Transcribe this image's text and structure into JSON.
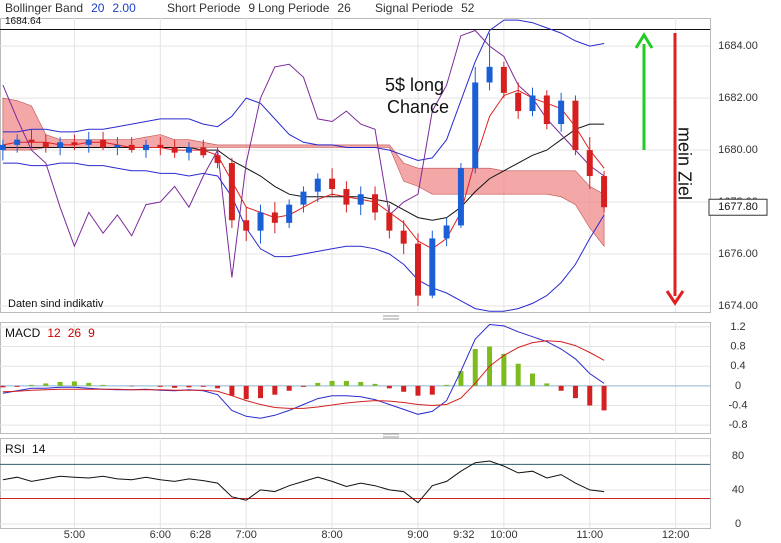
{
  "chart_data": [
    {
      "type": "candlestick",
      "indicators": [
        {
          "name": "Bollinger Band",
          "params": [
            "20",
            "2.00"
          ],
          "color": "#1a3fcc"
        },
        {
          "name": "Short Periode",
          "params": [
            "9"
          ],
          "color": "#333333"
        },
        {
          "name": "Long Periode",
          "params": [
            "26"
          ],
          "color": "#333333"
        },
        {
          "name": "Signal Periode",
          "params": [
            "52"
          ],
          "color": "#333333"
        }
      ],
      "x": [
        "4:10",
        "4:20",
        "4:30",
        "4:40",
        "4:50",
        "5:00",
        "5:10",
        "5:20",
        "5:30",
        "5:40",
        "5:50",
        "6:00",
        "6:10",
        "6:20",
        "6:30",
        "6:40",
        "6:50",
        "7:00",
        "7:10",
        "7:20",
        "7:30",
        "7:40",
        "7:50",
        "8:00",
        "8:10",
        "8:20",
        "8:30",
        "8:40",
        "8:50",
        "9:00",
        "9:10",
        "9:20",
        "9:30",
        "9:40",
        "9:50",
        "10:00",
        "10:10",
        "10:20",
        "10:30",
        "10:40",
        "10:50",
        "11:00",
        "11:10"
      ],
      "open": [
        1680.0,
        1680.2,
        1680.4,
        1680.3,
        1680.1,
        1680.3,
        1680.2,
        1680.4,
        1680.1,
        1680.2,
        1680.0,
        1680.2,
        1680.1,
        1679.9,
        1680.1,
        1679.8,
        1679.5,
        1677.3,
        1676.9,
        1677.6,
        1677.2,
        1677.9,
        1678.4,
        1678.9,
        1678.5,
        1677.9,
        1678.3,
        1677.6,
        1676.9,
        1676.4,
        1674.4,
        1676.6,
        1677.1,
        1679.3,
        1682.6,
        1683.2,
        1682.2,
        1681.5,
        1682.1,
        1681.0,
        1681.9,
        1680.0,
        1679.0
      ],
      "high": [
        1680.4,
        1680.6,
        1680.8,
        1680.6,
        1680.5,
        1680.6,
        1680.7,
        1680.7,
        1680.5,
        1680.5,
        1680.4,
        1680.5,
        1680.4,
        1680.3,
        1680.4,
        1680.1,
        1679.7,
        1677.8,
        1677.9,
        1678.0,
        1678.1,
        1678.6,
        1679.1,
        1679.3,
        1678.8,
        1678.6,
        1678.6,
        1677.9,
        1677.3,
        1676.8,
        1676.9,
        1677.4,
        1679.5,
        1683.2,
        1684.5,
        1683.4,
        1682.6,
        1682.4,
        1682.3,
        1682.2,
        1682.1,
        1680.5,
        1679.2
      ],
      "low": [
        1679.6,
        1679.9,
        1680.1,
        1679.9,
        1679.8,
        1680.0,
        1679.9,
        1680.0,
        1679.8,
        1679.9,
        1679.7,
        1679.8,
        1679.7,
        1679.6,
        1679.7,
        1679.3,
        1677.0,
        1676.5,
        1676.4,
        1676.8,
        1677.0,
        1677.6,
        1678.0,
        1678.2,
        1677.6,
        1677.5,
        1677.3,
        1676.6,
        1676.0,
        1674.0,
        1674.3,
        1676.3,
        1677.0,
        1679.1,
        1682.3,
        1682.0,
        1681.2,
        1681.3,
        1680.8,
        1680.7,
        1679.8,
        1678.5,
        1677.6
      ],
      "close": [
        1680.2,
        1680.4,
        1680.3,
        1680.1,
        1680.3,
        1680.2,
        1680.4,
        1680.1,
        1680.2,
        1680.0,
        1680.2,
        1680.1,
        1679.9,
        1680.1,
        1679.8,
        1679.5,
        1677.3,
        1676.9,
        1677.6,
        1677.2,
        1677.9,
        1678.4,
        1678.9,
        1678.5,
        1677.9,
        1678.3,
        1677.6,
        1676.9,
        1676.4,
        1674.4,
        1676.6,
        1677.1,
        1679.3,
        1682.6,
        1683.2,
        1682.2,
        1681.5,
        1682.1,
        1681.0,
        1681.9,
        1680.0,
        1679.0,
        1677.8
      ],
      "up_color": "#1a5fd6",
      "down_color": "#d62020",
      "cloud": {
        "color": "#f08a8a",
        "span_a": [
          1682.0,
          1681.9,
          1681.7,
          1680.6,
          1680.4,
          1680.4,
          1680.4,
          1680.4,
          1680.4,
          1680.4,
          1680.5,
          1680.6,
          1680.4,
          1680.4,
          1680.3,
          1680.2,
          1680.2,
          1680.2,
          1680.2,
          1680.2,
          1680.2,
          1680.2,
          1680.2,
          1680.2,
          1680.2,
          1680.2,
          1680.2,
          1680.2,
          1679.5,
          1679.3,
          1679.3,
          1679.3,
          1679.3,
          1679.3,
          1679.3,
          1679.2,
          1679.2,
          1679.2,
          1679.2,
          1679.2,
          1679.2,
          1678.6,
          1678.3
        ],
        "span_b": [
          1680.0,
          1680.0,
          1680.0,
          1680.1,
          1680.1,
          1680.1,
          1680.1,
          1680.1,
          1680.1,
          1680.1,
          1680.1,
          1680.1,
          1680.1,
          1680.1,
          1680.1,
          1680.1,
          1680.1,
          1680.1,
          1680.1,
          1680.1,
          1680.1,
          1680.1,
          1680.1,
          1680.1,
          1680.1,
          1680.1,
          1680.1,
          1680.1,
          1678.8,
          1678.6,
          1678.3,
          1678.3,
          1678.3,
          1678.3,
          1678.3,
          1678.3,
          1678.3,
          1678.3,
          1678.3,
          1678.2,
          1677.9,
          1677.0,
          1676.3
        ]
      },
      "lines": [
        {
          "color": "#2a2ad0",
          "values": [
            1680.7,
            1680.7,
            1680.8,
            1680.8,
            1680.7,
            1680.7,
            1680.8,
            1680.8,
            1680.9,
            1681.0,
            1681.1,
            1681.2,
            1681.2,
            1681.2,
            1681.0,
            1680.9,
            1681.3,
            1682.0,
            1681.8,
            1681.2,
            1680.6,
            1680.3,
            1680.2,
            1680.2,
            1680.1,
            1680.1,
            1680.1,
            1680.0,
            1679.8,
            1679.6,
            1679.7,
            1680.4,
            1681.9,
            1683.4,
            1684.6,
            1685.0,
            1685.0,
            1684.9,
            1684.7,
            1684.5,
            1684.2,
            1684.0,
            1684.1
          ]
        },
        {
          "color": "#111111",
          "values": [
            1680.1,
            1680.1,
            1680.1,
            1680.1,
            1680.1,
            1680.1,
            1680.1,
            1680.1,
            1680.1,
            1680.1,
            1680.1,
            1680.1,
            1680.1,
            1680.1,
            1680.0,
            1680.0,
            1679.6,
            1679.3,
            1679.0,
            1678.6,
            1678.3,
            1678.2,
            1678.2,
            1678.2,
            1678.2,
            1678.2,
            1678.1,
            1678.0,
            1677.7,
            1677.4,
            1677.3,
            1677.4,
            1677.8,
            1678.4,
            1678.9,
            1679.2,
            1679.5,
            1679.8,
            1680.0,
            1680.4,
            1680.8,
            1681.0,
            1681.0
          ]
        },
        {
          "color": "#2a2ad0",
          "values": [
            1679.5,
            1679.5,
            1679.4,
            1679.4,
            1679.5,
            1679.5,
            1679.4,
            1679.4,
            1679.3,
            1679.2,
            1679.2,
            1679.1,
            1679.1,
            1679.0,
            1679.1,
            1679.0,
            1678.2,
            1677.0,
            1676.2,
            1675.9,
            1675.9,
            1676.0,
            1676.1,
            1676.2,
            1676.3,
            1676.3,
            1676.2,
            1676.0,
            1675.6,
            1675.0,
            1674.7,
            1674.5,
            1674.2,
            1673.9,
            1673.8,
            1673.8,
            1673.9,
            1674.1,
            1674.4,
            1674.9,
            1675.6,
            1676.6,
            1677.5
          ]
        },
        {
          "color": "#e02020",
          "values": [
            1680.2,
            1680.3,
            1680.3,
            1680.3,
            1680.2,
            1680.2,
            1680.3,
            1680.3,
            1680.2,
            1680.1,
            1680.1,
            1680.1,
            1680.0,
            1680.0,
            1680.0,
            1679.8,
            1678.8,
            1677.8,
            1677.6,
            1677.4,
            1677.5,
            1677.8,
            1678.1,
            1678.3,
            1678.2,
            1678.1,
            1678.0,
            1677.6,
            1677.2,
            1676.5,
            1676.2,
            1676.6,
            1677.6,
            1679.6,
            1681.3,
            1682.1,
            1682.3,
            1682.0,
            1681.8,
            1681.6,
            1680.9,
            1680.0,
            1679.3
          ]
        },
        {
          "color": "#7a2a9a",
          "values": [
            1682.5,
            1681.2,
            1680.0,
            1679.5,
            1677.8,
            1676.3,
            1677.6,
            1676.8,
            1677.5,
            1676.7,
            1677.9,
            1678.0,
            1678.6,
            1677.8,
            1679.0,
            1680.0,
            1675.1,
            1679.5,
            1682.0,
            1683.2,
            1683.3,
            1682.8,
            1681.2,
            1681.1,
            1681.5,
            1681.0,
            1680.8,
            1677.5,
            1678.0,
            1678.3,
            1681.5,
            1682.5,
            1684.4,
            1684.6,
            1684.0,
            1683.6,
            1682.5,
            1682.0,
            1681.2,
            1680.6,
            1680.0,
            1679.4,
            1679.0
          ]
        }
      ],
      "xlim": [
        "4:08",
        "12:24"
      ],
      "ylim": [
        1673.77,
        1685.08
      ],
      "yticks": [
        {
          "value": 1674,
          "label": "1674.00"
        },
        {
          "value": 1676,
          "label": "1676.00"
        },
        {
          "value": 1678,
          "label": "1678.00"
        },
        {
          "value": 1680,
          "label": "1680.00"
        },
        {
          "value": 1682,
          "label": "1682.00"
        },
        {
          "value": 1684,
          "label": "1684.00"
        }
      ],
      "reference_line": {
        "value": 1684.64,
        "label": "1684.64"
      },
      "last_price": {
        "value": 1677.8,
        "label": "1677.80"
      },
      "annotation_lines": [
        "5$ long",
        "Chance"
      ],
      "target_label": "mein Ziel",
      "note": "Daten sind indikativ",
      "grid": true
    },
    {
      "type": "macd",
      "title": "MACD",
      "params": [
        "12",
        "26",
        "9"
      ],
      "params_color": "#cc0000",
      "x": [
        "4:10",
        "4:20",
        "4:30",
        "4:40",
        "4:50",
        "5:00",
        "5:10",
        "5:20",
        "5:30",
        "5:40",
        "5:50",
        "6:00",
        "6:10",
        "6:20",
        "6:30",
        "6:40",
        "6:50",
        "7:00",
        "7:10",
        "7:20",
        "7:30",
        "7:40",
        "7:50",
        "8:00",
        "8:10",
        "8:20",
        "8:30",
        "8:40",
        "8:50",
        "9:00",
        "9:10",
        "9:20",
        "9:30",
        "9:40",
        "9:50",
        "10:00",
        "10:10",
        "10:20",
        "10:30",
        "10:40",
        "10:50",
        "11:00",
        "11:10"
      ],
      "histogram": [
        -0.03,
        -0.02,
        0.02,
        0.05,
        0.08,
        0.09,
        0.06,
        0.02,
        0,
        -0.01,
        0,
        -0.02,
        -0.04,
        -0.03,
        -0.02,
        -0.05,
        -0.2,
        -0.27,
        -0.25,
        -0.18,
        -0.1,
        -0.02,
        0.06,
        0.1,
        0.1,
        0.08,
        0.04,
        -0.05,
        -0.12,
        -0.2,
        -0.18,
        0.02,
        0.3,
        0.75,
        0.8,
        0.65,
        0.45,
        0.25,
        0.05,
        -0.1,
        -0.25,
        -0.4,
        -0.5
      ],
      "positive_color": "#7dbb1e",
      "negative_color": "#d42020",
      "series": [
        {
          "color": "#2a2ad0",
          "values": [
            -0.15,
            -0.1,
            -0.05,
            -0.05,
            -0.03,
            -0.03,
            -0.05,
            -0.07,
            -0.08,
            -0.08,
            -0.07,
            -0.09,
            -0.1,
            -0.08,
            -0.1,
            -0.18,
            -0.5,
            -0.62,
            -0.66,
            -0.6,
            -0.5,
            -0.38,
            -0.26,
            -0.2,
            -0.2,
            -0.22,
            -0.28,
            -0.38,
            -0.48,
            -0.58,
            -0.52,
            -0.3,
            0.3,
            0.95,
            1.25,
            1.22,
            1.1,
            1.0,
            0.9,
            0.75,
            0.55,
            0.25,
            0.05
          ]
        },
        {
          "color": "#d42020",
          "values": [
            -0.12,
            -0.11,
            -0.09,
            -0.08,
            -0.07,
            -0.07,
            -0.07,
            -0.07,
            -0.07,
            -0.08,
            -0.08,
            -0.08,
            -0.09,
            -0.09,
            -0.09,
            -0.11,
            -0.2,
            -0.3,
            -0.38,
            -0.44,
            -0.46,
            -0.46,
            -0.43,
            -0.39,
            -0.35,
            -0.32,
            -0.3,
            -0.31,
            -0.34,
            -0.38,
            -0.4,
            -0.38,
            -0.25,
            0.05,
            0.4,
            0.62,
            0.78,
            0.88,
            0.92,
            0.9,
            0.82,
            0.68,
            0.52
          ]
        }
      ],
      "ylim": [
        -0.96,
        1.3
      ],
      "yticks": [
        -0.8,
        -0.4,
        0,
        0.4,
        0.8,
        1.2
      ],
      "grid": true
    },
    {
      "type": "line",
      "title": "RSI",
      "params": [
        "14"
      ],
      "params_color": "#111111",
      "x": [
        "4:10",
        "4:20",
        "4:30",
        "4:40",
        "4:50",
        "5:00",
        "5:10",
        "5:20",
        "5:30",
        "5:40",
        "5:50",
        "6:00",
        "6:10",
        "6:20",
        "6:30",
        "6:40",
        "6:50",
        "7:00",
        "7:10",
        "7:20",
        "7:30",
        "7:40",
        "7:50",
        "8:00",
        "8:10",
        "8:20",
        "8:30",
        "8:40",
        "8:50",
        "9:00",
        "9:10",
        "9:20",
        "9:30",
        "9:40",
        "9:50",
        "10:00",
        "10:10",
        "10:20",
        "10:30",
        "10:40",
        "10:50",
        "11:00",
        "11:10"
      ],
      "series": [
        {
          "color": "#111111",
          "values": [
            52,
            55,
            50,
            53,
            56,
            55,
            54,
            56,
            53,
            52,
            55,
            52,
            50,
            53,
            51,
            48,
            32,
            28,
            40,
            38,
            45,
            50,
            55,
            50,
            44,
            48,
            45,
            40,
            38,
            25,
            45,
            50,
            62,
            72,
            74,
            68,
            60,
            62,
            54,
            58,
            48,
            40,
            38
          ]
        }
      ],
      "levels": [
        {
          "value": 70,
          "color": "#2f5f6f"
        },
        {
          "value": 30,
          "color": "#cc2222"
        }
      ],
      "ylim": [
        -4.7,
        101
      ],
      "yticks": [
        0,
        40,
        80
      ],
      "xticks": [
        "5:00",
        "6:00",
        "6:28",
        "7:00",
        "8:00",
        "9:00",
        "9:32",
        "10:00",
        "11:00",
        "12:00"
      ],
      "grid": true
    }
  ]
}
